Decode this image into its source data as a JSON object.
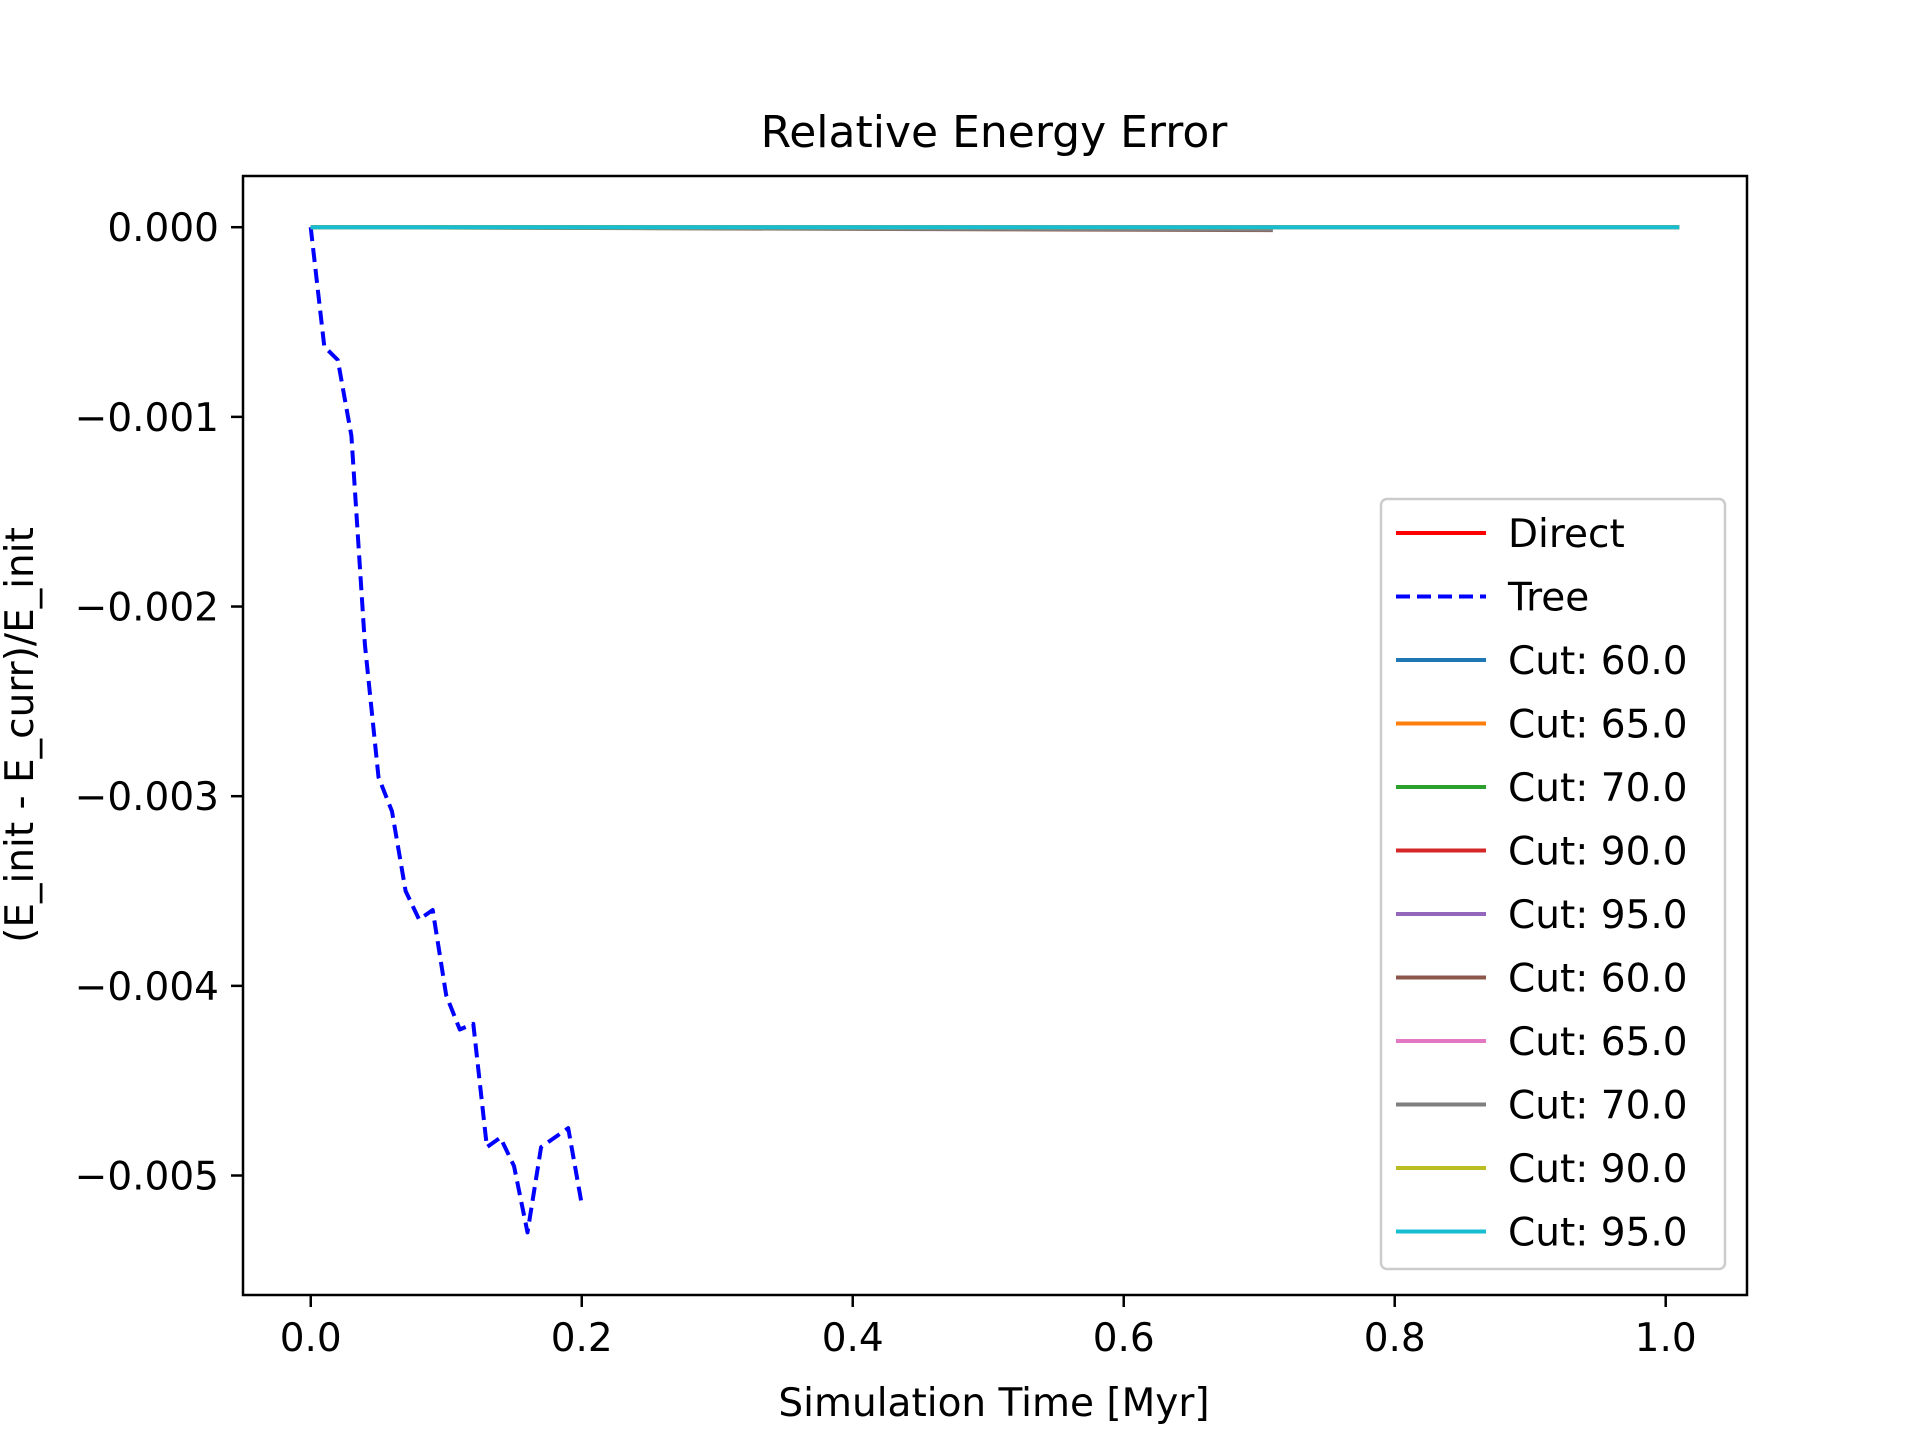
{
  "chart_data": {
    "type": "line",
    "title": "Relative Energy Error",
    "xlabel": "Simulation Time [Myr]",
    "ylabel": "(E_init - E_curr)/E_init",
    "xlim": [
      -0.05,
      1.06
    ],
    "ylim": [
      -0.00563,
      0.00027
    ],
    "xticks": [
      0.0,
      0.2,
      0.4,
      0.6,
      0.8,
      1.0
    ],
    "xtick_labels": [
      "0.0",
      "0.2",
      "0.4",
      "0.6",
      "0.8",
      "1.0"
    ],
    "yticks": [
      0.0,
      -0.001,
      -0.002,
      -0.003,
      -0.004,
      -0.005
    ],
    "ytick_labels": [
      "0.000",
      "−0.001",
      "−0.002",
      "−0.003",
      "−0.004",
      "−0.005"
    ],
    "grid": false,
    "legend_position": "center-right",
    "series": [
      {
        "name": "Direct",
        "color": "#ff0000",
        "dash": "solid",
        "x": [
          0.0,
          1.01
        ],
        "y": [
          0.0,
          0.0
        ]
      },
      {
        "name": "Tree",
        "color": "#0000ff",
        "dash": "dashed",
        "x": [
          0.0,
          0.01,
          0.02,
          0.03,
          0.04,
          0.05,
          0.06,
          0.07,
          0.08,
          0.09,
          0.1,
          0.11,
          0.12,
          0.13,
          0.14,
          0.15,
          0.16,
          0.17,
          0.18,
          0.19,
          0.2
        ],
        "y": [
          0.0,
          -0.00063,
          -0.0007,
          -0.0011,
          -0.0022,
          -0.0029,
          -0.00308,
          -0.0035,
          -0.00365,
          -0.0036,
          -0.00405,
          -0.00423,
          -0.0042,
          -0.00485,
          -0.0048,
          -0.00495,
          -0.0053,
          -0.00485,
          -0.0048,
          -0.00475,
          -0.00515
        ]
      },
      {
        "name": "Cut: 60.0",
        "color": "#1f77b4",
        "dash": "solid",
        "x": [
          0.0,
          1.01
        ],
        "y": [
          0.0,
          0.0
        ]
      },
      {
        "name": "Cut: 65.0",
        "color": "#ff7f0e",
        "dash": "solid",
        "x": [
          0.0,
          1.01
        ],
        "y": [
          0.0,
          0.0
        ]
      },
      {
        "name": "Cut: 70.0",
        "color": "#2ca02c",
        "dash": "solid",
        "x": [
          0.0,
          1.01
        ],
        "y": [
          0.0,
          0.0
        ]
      },
      {
        "name": "Cut: 90.0",
        "color": "#d62728",
        "dash": "solid",
        "x": [
          0.0,
          1.01
        ],
        "y": [
          0.0,
          0.0
        ]
      },
      {
        "name": "Cut: 95.0",
        "color": "#9467bd",
        "dash": "solid",
        "x": [
          0.0,
          1.01
        ],
        "y": [
          0.0,
          0.0
        ]
      },
      {
        "name": "Cut: 60.0",
        "color": "#8c564b",
        "dash": "solid",
        "x": [
          0.0,
          0.71
        ],
        "y": [
          0.0,
          -1.5e-05
        ]
      },
      {
        "name": "Cut: 65.0",
        "color": "#e377c2",
        "dash": "solid",
        "x": [
          0.0,
          1.01
        ],
        "y": [
          0.0,
          0.0
        ]
      },
      {
        "name": "Cut: 70.0",
        "color": "#7f7f7f",
        "dash": "solid",
        "x": [
          0.0,
          0.71
        ],
        "y": [
          0.0,
          -1.2e-05
        ]
      },
      {
        "name": "Cut: 90.0",
        "color": "#bcbd22",
        "dash": "solid",
        "x": [
          0.0,
          1.01
        ],
        "y": [
          0.0,
          0.0
        ]
      },
      {
        "name": "Cut: 95.0",
        "color": "#17becf",
        "dash": "solid",
        "x": [
          0.0,
          1.01
        ],
        "y": [
          0.0,
          0.0
        ]
      }
    ]
  }
}
